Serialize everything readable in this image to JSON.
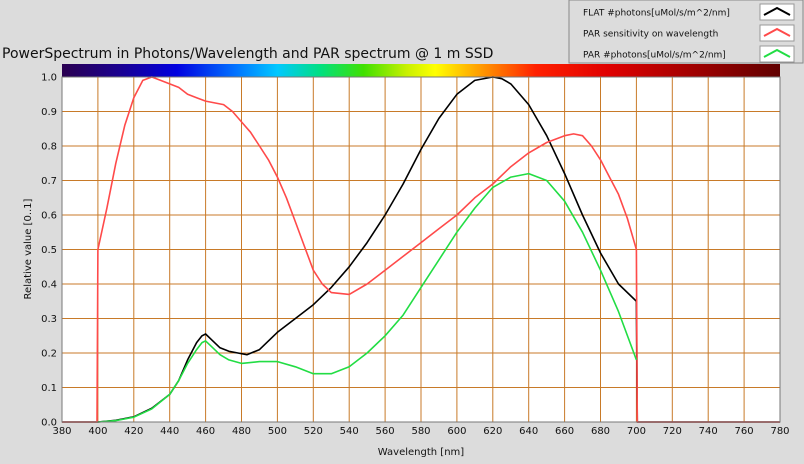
{
  "chart_data": {
    "type": "line",
    "title": "PowerSpectrum in Photons/Wavelength and PAR spectrum @ 1 m SSD",
    "xlabel": "Wavelength [nm]",
    "ylabel": "Relative value [0..1]",
    "xlim": [
      380,
      780
    ],
    "ylim": [
      0,
      1.0
    ],
    "xticks": [
      380,
      400,
      420,
      440,
      460,
      480,
      500,
      520,
      540,
      560,
      580,
      600,
      620,
      640,
      660,
      680,
      700,
      720,
      740,
      760,
      780
    ],
    "yticks": [
      0.0,
      0.1,
      0.2,
      0.3,
      0.4,
      0.5,
      0.6,
      0.7,
      0.8,
      0.9,
      1.0
    ],
    "xtick_labels": [
      "380",
      "400",
      "420",
      "440",
      "460",
      "480",
      "500",
      "520",
      "540",
      "560",
      "580",
      "600",
      "620",
      "640",
      "660",
      "680",
      "700",
      "720",
      "740",
      "760",
      "780"
    ],
    "ytick_labels": [
      "0.0",
      "0.1",
      "0.2",
      "0.3",
      "0.4",
      "0.5",
      "0.6",
      "0.7",
      "0.8",
      "0.9",
      "1.0"
    ],
    "grid": true,
    "legend_position": "top-right",
    "series": [
      {
        "name": "FLAT #photons[uMol/s/m^2/nm]",
        "color": "#000000",
        "x": [
          380,
          395,
          400,
          410,
          420,
          430,
          440,
          445,
          450,
          455,
          458,
          460,
          463,
          468,
          473,
          478,
          483,
          490,
          500,
          510,
          520,
          530,
          540,
          550,
          560,
          570,
          580,
          590,
          600,
          610,
          620,
          625,
          630,
          640,
          650,
          660,
          670,
          680,
          690,
          700,
          700.5,
          720,
          740,
          760,
          780
        ],
        "y": [
          0.0,
          0.0,
          0.0,
          0.005,
          0.015,
          0.04,
          0.08,
          0.12,
          0.18,
          0.23,
          0.25,
          0.255,
          0.24,
          0.215,
          0.205,
          0.2,
          0.195,
          0.21,
          0.26,
          0.3,
          0.34,
          0.39,
          0.45,
          0.52,
          0.6,
          0.69,
          0.79,
          0.88,
          0.95,
          0.99,
          1.0,
          0.995,
          0.98,
          0.92,
          0.83,
          0.72,
          0.6,
          0.49,
          0.4,
          0.35,
          0.0,
          0.0,
          0.0,
          0.0,
          0.0
        ]
      },
      {
        "name": "PAR sensitivity on wavelength",
        "color": "#ff4a4a",
        "x": [
          380,
          399.5,
          400,
          405,
          410,
          415,
          420,
          425,
          430,
          435,
          440,
          445,
          450,
          455,
          460,
          465,
          470,
          475,
          480,
          485,
          490,
          495,
          500,
          505,
          510,
          515,
          520,
          525,
          530,
          540,
          550,
          560,
          570,
          580,
          590,
          600,
          610,
          620,
          630,
          640,
          650,
          660,
          665,
          670,
          675,
          680,
          685,
          690,
          695,
          700,
          700.5,
          720,
          740,
          760,
          780
        ],
        "y": [
          0.0,
          0.0,
          0.5,
          0.62,
          0.75,
          0.86,
          0.94,
          0.99,
          1.0,
          0.99,
          0.98,
          0.97,
          0.95,
          0.94,
          0.93,
          0.925,
          0.92,
          0.9,
          0.87,
          0.84,
          0.8,
          0.76,
          0.71,
          0.65,
          0.58,
          0.51,
          0.44,
          0.4,
          0.375,
          0.37,
          0.4,
          0.44,
          0.48,
          0.52,
          0.56,
          0.6,
          0.65,
          0.69,
          0.74,
          0.78,
          0.81,
          0.83,
          0.835,
          0.83,
          0.8,
          0.76,
          0.71,
          0.66,
          0.59,
          0.5,
          0.0,
          0.0,
          0.0,
          0.0,
          0.0
        ]
      },
      {
        "name": "PAR #photons[uMol/s/m^2/nm]",
        "color": "#22dd44",
        "x": [
          400,
          410,
          420,
          430,
          440,
          445,
          450,
          455,
          458,
          460,
          463,
          468,
          473,
          480,
          490,
          500,
          510,
          520,
          530,
          540,
          550,
          560,
          570,
          580,
          590,
          600,
          610,
          620,
          630,
          640,
          650,
          660,
          670,
          680,
          690,
          700
        ],
        "y": [
          0.0,
          0.004,
          0.014,
          0.038,
          0.08,
          0.12,
          0.17,
          0.21,
          0.23,
          0.235,
          0.22,
          0.195,
          0.18,
          0.17,
          0.175,
          0.175,
          0.16,
          0.14,
          0.14,
          0.16,
          0.2,
          0.25,
          0.31,
          0.39,
          0.47,
          0.55,
          0.62,
          0.68,
          0.71,
          0.72,
          0.7,
          0.64,
          0.55,
          0.44,
          0.32,
          0.18
        ]
      }
    ]
  }
}
